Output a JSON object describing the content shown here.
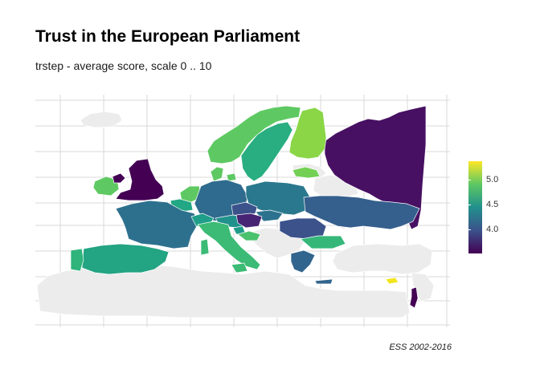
{
  "title": "Trust in the European Parliament",
  "subtitle": "trstep - average score, scale 0 .. 10",
  "caption": "ESS 2002-2016",
  "legend": {
    "ticks": [
      "5.0",
      "4.5",
      "4.0"
    ],
    "tick_values": [
      5.0,
      4.5,
      4.0
    ],
    "min": 3.55,
    "max": 5.35,
    "colors": [
      "#440154",
      "#3b528b",
      "#21908c",
      "#5dc863",
      "#fde725"
    ]
  },
  "colors": {
    "no_data": "#ececec",
    "border": "#ffffff",
    "grid": "#d9d9d9"
  }
}
